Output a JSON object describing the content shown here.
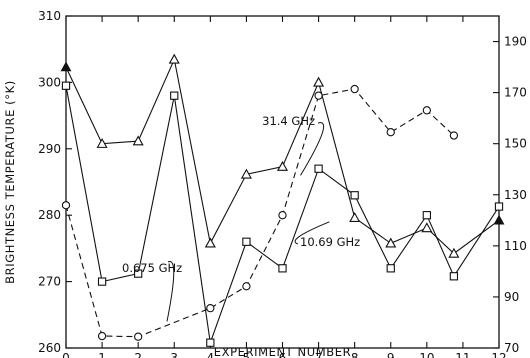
{
  "chart_data": {
    "type": "line",
    "title": "",
    "xlabel": "EXPERIMENT NUMBER",
    "ylabel": "BRIGHTNESS TEMPERATURE (°K)",
    "xlim": [
      0,
      12
    ],
    "ylim": [
      260,
      310
    ],
    "y2lim": [
      70,
      200
    ],
    "x_ticks": [
      "0",
      "1",
      "2",
      "3",
      "4",
      "5",
      "6",
      "7",
      "8",
      "9",
      "10",
      "11",
      "12"
    ],
    "y_ticks": [
      "260",
      "270",
      "280",
      "290",
      "300",
      "310"
    ],
    "y2_ticks": [
      "70",
      "90",
      "110",
      "130",
      "150",
      "170",
      "190"
    ],
    "grid": false,
    "legend": "none",
    "series": [
      {
        "name": "31.4 GHz",
        "marker": "triangle",
        "style": "solid",
        "axis": "right",
        "x": [
          0,
          1,
          2,
          3,
          4,
          5,
          6,
          7,
          8,
          9,
          10,
          10.75,
          12
        ],
        "y": [
          180,
          150,
          151,
          183,
          111,
          138,
          141,
          174,
          121,
          111,
          117,
          107,
          120
        ]
      },
      {
        "name": "10.69 GHz",
        "marker": "square",
        "style": "solid",
        "axis": "left",
        "x": [
          0,
          1,
          2,
          3,
          4,
          5,
          6,
          7,
          8,
          9,
          10,
          10.75,
          12
        ],
        "y": [
          299.5,
          270,
          271.2,
          298,
          260.8,
          276,
          272,
          287,
          283,
          272,
          280,
          270.8,
          281.3
        ]
      },
      {
        "name": "0.675 GHz",
        "marker": "circle",
        "style": "dashed",
        "axis": "left",
        "x": [
          0,
          1,
          2,
          4,
          5,
          6,
          7,
          8,
          9,
          10,
          10.75
        ],
        "y": [
          281.5,
          261.8,
          261.7,
          266,
          269.3,
          280,
          298,
          299,
          292.5,
          295.8,
          292
        ]
      }
    ],
    "annotations": [
      {
        "text": "31.4 GHz",
        "points_to_x": 6.5,
        "points_to_y": 286
      },
      {
        "text": "10.69 GHz",
        "points_to_x": 7.3,
        "points_to_y": 279
      },
      {
        "text": "0.675 GHz",
        "points_to_x": 2.8,
        "points_to_y": 264
      }
    ],
    "colors": {
      "ink": "#111111",
      "background": "#ffffff"
    }
  }
}
